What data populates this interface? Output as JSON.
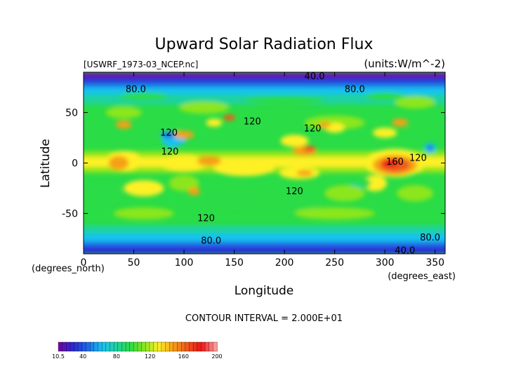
{
  "chart_data": {
    "type": "heatmap",
    "title": "Upward Solar Radiation Flux",
    "source_label": "[USWRF_1973-03_NCEP.nc]",
    "units_label": "(units:W/m^-2)",
    "xlabel": "Longitude",
    "ylabel": "Latitude",
    "x_unit_label": "(degrees_east)",
    "y_unit_label": "(degrees_north)",
    "xlim": [
      0,
      360
    ],
    "ylim": [
      -90,
      90
    ],
    "x_ticks": [
      0,
      50,
      100,
      150,
      200,
      250,
      300,
      350
    ],
    "y_ticks": [
      -50,
      0,
      50
    ],
    "contour_interval_label": "CONTOUR INTERVAL = 2.000E+01",
    "contour_labels": [
      {
        "text": "40.0",
        "x": 230,
        "y": 86
      },
      {
        "text": "80.0",
        "x": 52,
        "y": 73
      },
      {
        "text": "80.0",
        "x": 270,
        "y": 73
      },
      {
        "text": "120",
        "x": 168,
        "y": 41
      },
      {
        "text": "120",
        "x": 228,
        "y": 34
      },
      {
        "text": "120",
        "x": 85,
        "y": 30
      },
      {
        "text": "120",
        "x": 86,
        "y": 11
      },
      {
        "text": "160",
        "x": 310,
        "y": 1
      },
      {
        "text": "120",
        "x": 333,
        "y": 5
      },
      {
        "text": "120",
        "x": 210,
        "y": -28
      },
      {
        "text": "120",
        "x": 122,
        "y": -55
      },
      {
        "text": "80.0",
        "x": 127,
        "y": -77
      },
      {
        "text": "80.0",
        "x": 345,
        "y": -74
      },
      {
        "text": "40.0",
        "x": 320,
        "y": -87
      }
    ],
    "colorbar": {
      "ticks": [
        "10.5",
        "40",
        "80",
        "120",
        "160",
        "200"
      ],
      "range": [
        10.5,
        200
      ],
      "colors": [
        "#6b0aa6",
        "#2a2ad6",
        "#1e6ee6",
        "#19c3f0",
        "#1ed2a0",
        "#2adc46",
        "#8ce61e",
        "#fff028",
        "#f5a014",
        "#f05a1e",
        "#eb1414",
        "#fa9696"
      ]
    }
  }
}
